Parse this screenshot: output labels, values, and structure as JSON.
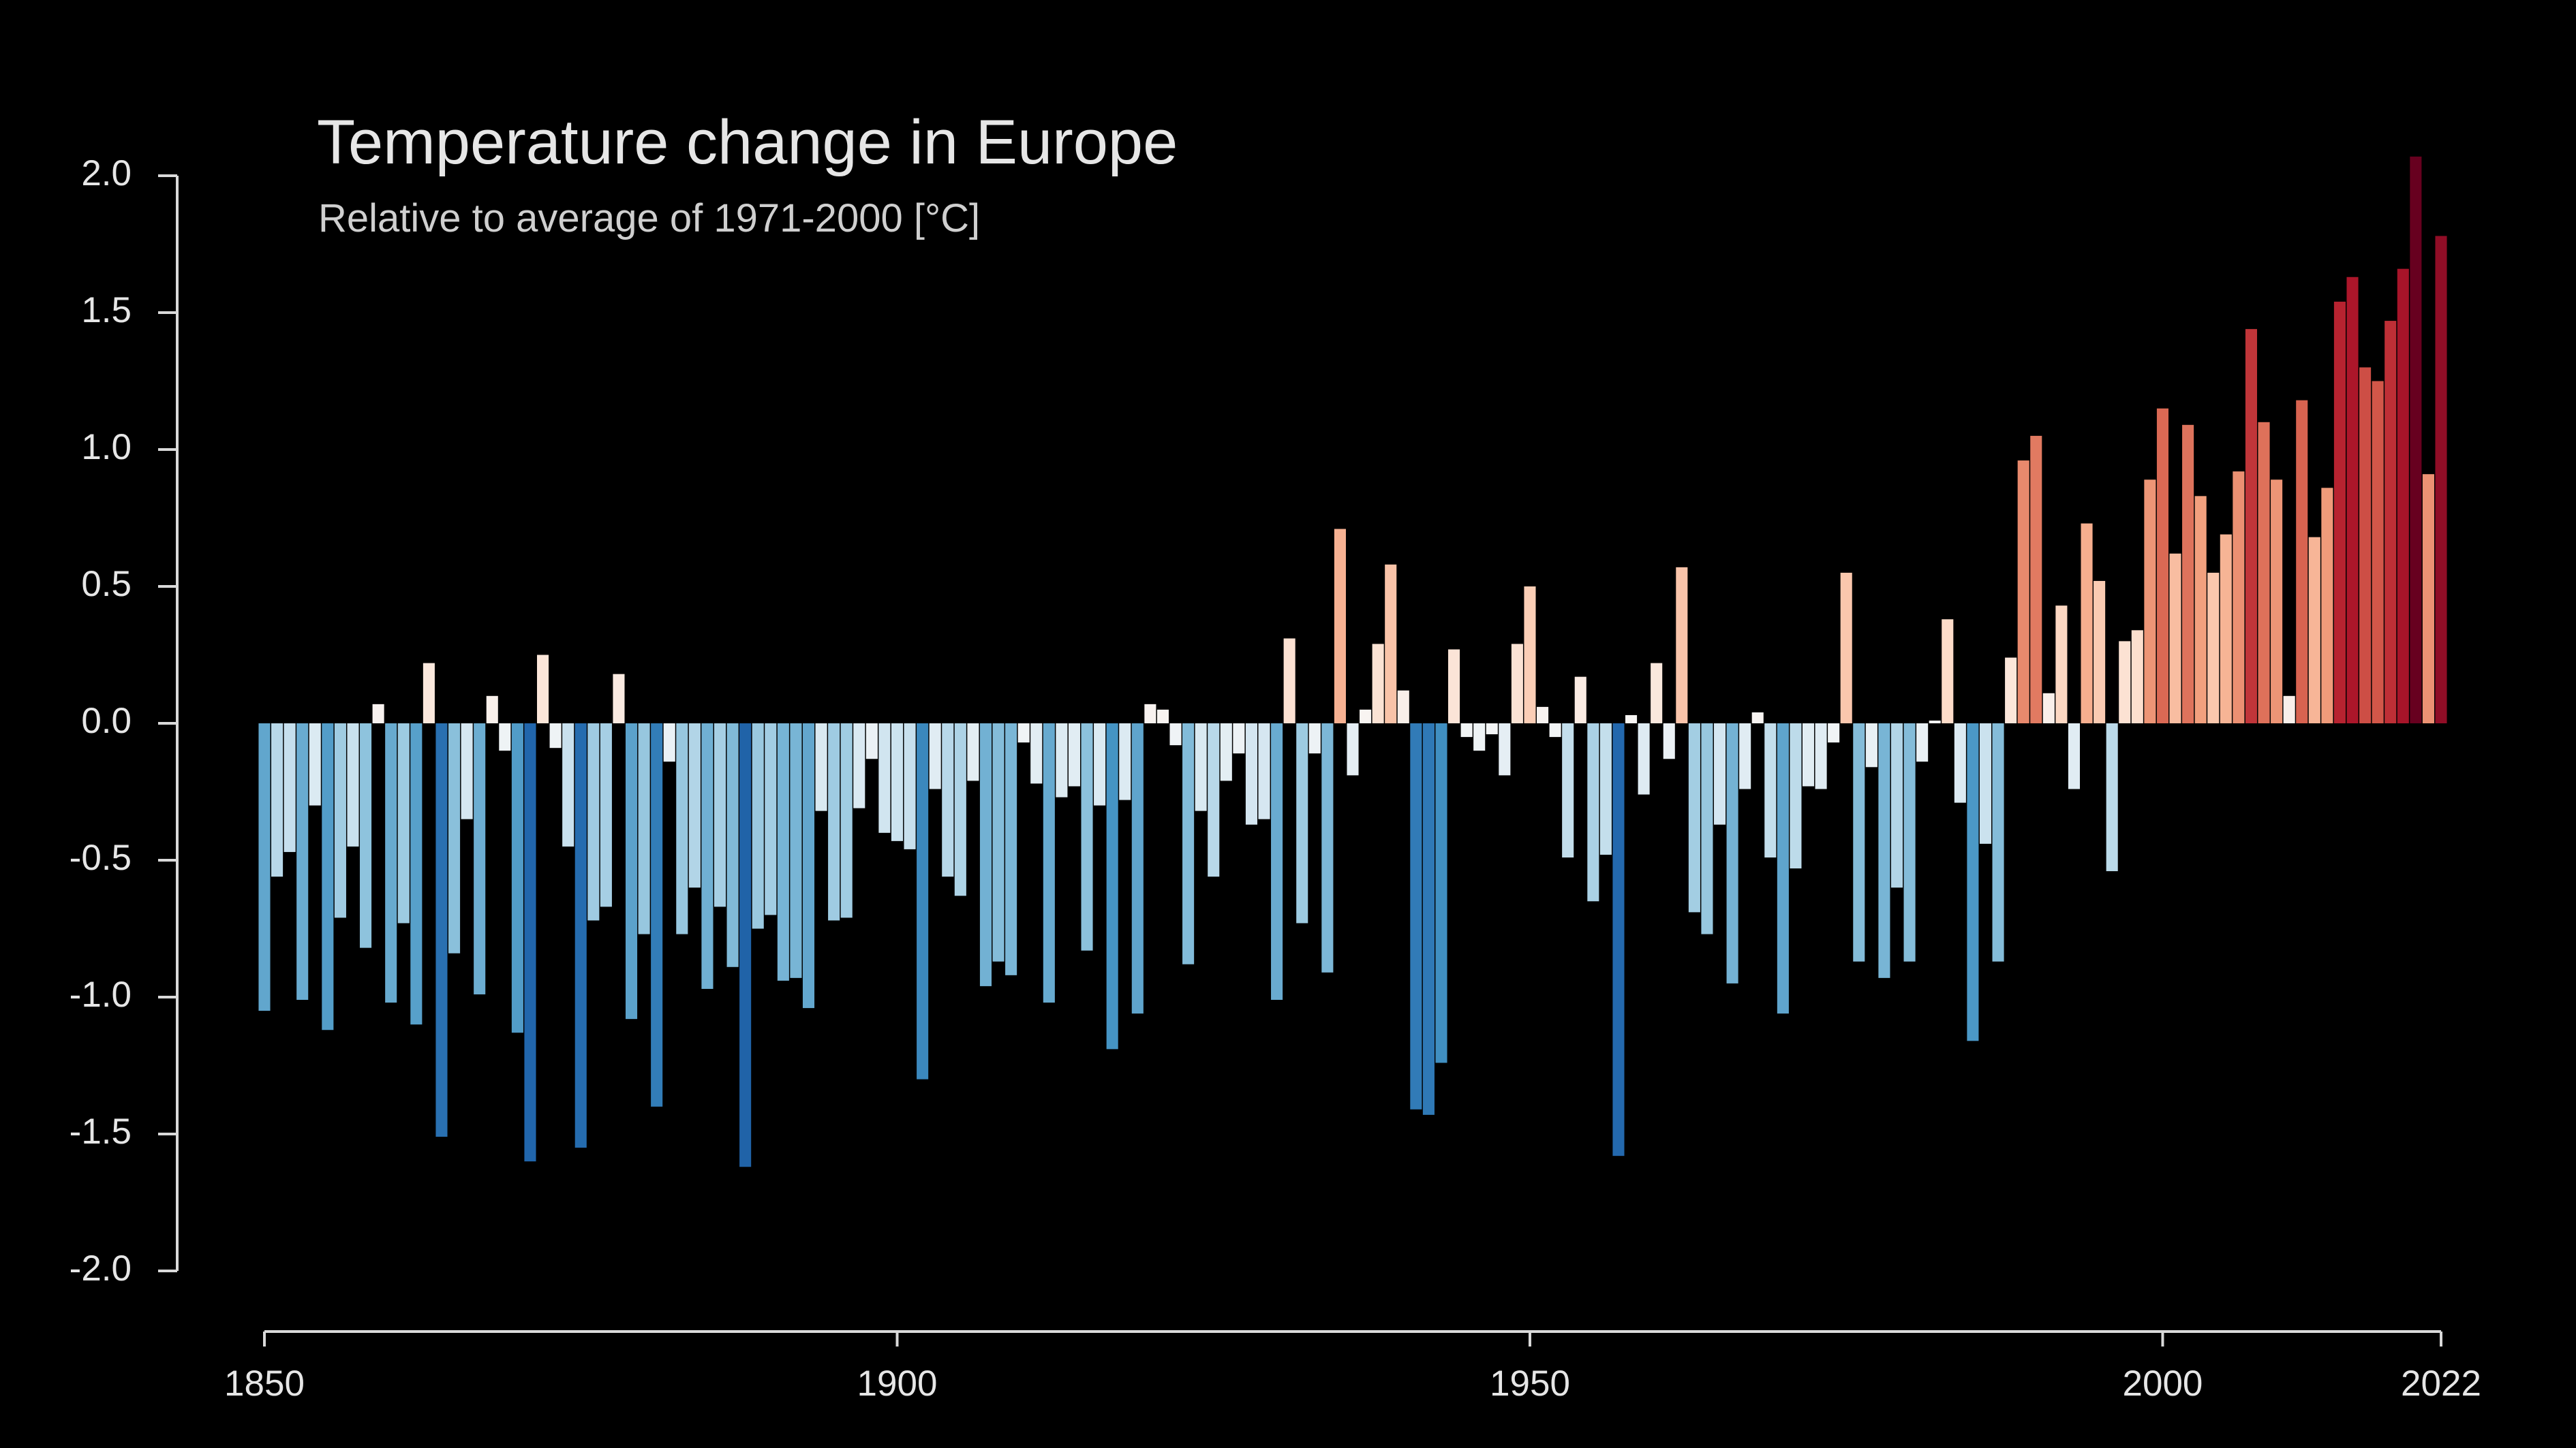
{
  "chart_data": {
    "type": "bar",
    "title": "Temperature change in Europe",
    "subtitle": "Relative to average of 1971-2000  [°C]",
    "x": [
      1850,
      1851,
      1852,
      1853,
      1854,
      1855,
      1856,
      1857,
      1858,
      1859,
      1860,
      1861,
      1862,
      1863,
      1864,
      1865,
      1866,
      1867,
      1868,
      1869,
      1870,
      1871,
      1872,
      1873,
      1874,
      1875,
      1876,
      1877,
      1878,
      1879,
      1880,
      1881,
      1882,
      1883,
      1884,
      1885,
      1886,
      1887,
      1888,
      1889,
      1890,
      1891,
      1892,
      1893,
      1894,
      1895,
      1896,
      1897,
      1898,
      1899,
      1900,
      1901,
      1902,
      1903,
      1904,
      1905,
      1906,
      1907,
      1908,
      1909,
      1910,
      1911,
      1912,
      1913,
      1914,
      1915,
      1916,
      1917,
      1918,
      1919,
      1920,
      1921,
      1922,
      1923,
      1924,
      1925,
      1926,
      1927,
      1928,
      1929,
      1930,
      1931,
      1932,
      1933,
      1934,
      1935,
      1936,
      1937,
      1938,
      1939,
      1940,
      1941,
      1942,
      1943,
      1944,
      1945,
      1946,
      1947,
      1948,
      1949,
      1950,
      1951,
      1952,
      1953,
      1954,
      1955,
      1956,
      1957,
      1958,
      1959,
      1960,
      1961,
      1962,
      1963,
      1964,
      1965,
      1966,
      1967,
      1968,
      1969,
      1970,
      1971,
      1972,
      1973,
      1974,
      1975,
      1976,
      1977,
      1978,
      1979,
      1980,
      1981,
      1982,
      1983,
      1984,
      1985,
      1986,
      1987,
      1988,
      1989,
      1990,
      1991,
      1992,
      1993,
      1994,
      1995,
      1996,
      1997,
      1998,
      1999,
      2000,
      2001,
      2002,
      2003,
      2004,
      2005,
      2006,
      2007,
      2008,
      2009,
      2010,
      2011,
      2012,
      2013,
      2014,
      2015,
      2016,
      2017,
      2018,
      2019,
      2020,
      2021,
      2022
    ],
    "values": [
      -1.05,
      -0.56,
      -0.47,
      -1.01,
      -0.3,
      -1.12,
      -0.71,
      -0.45,
      -0.82,
      0.07,
      -1.02,
      -0.73,
      -1.1,
      0.22,
      -1.51,
      -0.84,
      -0.35,
      -0.99,
      0.1,
      -0.1,
      -1.13,
      -1.6,
      0.25,
      -0.09,
      -0.45,
      -1.55,
      -0.72,
      -0.67,
      0.18,
      -1.08,
      -0.77,
      -1.4,
      -0.14,
      -0.77,
      -0.6,
      -0.97,
      -0.67,
      -0.89,
      -1.62,
      -0.75,
      -0.7,
      -0.94,
      -0.93,
      -1.04,
      -0.32,
      -0.72,
      -0.71,
      -0.31,
      -0.13,
      -0.4,
      -0.43,
      -0.46,
      -1.3,
      -0.24,
      -0.56,
      -0.63,
      -0.21,
      -0.96,
      -0.87,
      -0.92,
      -0.07,
      -0.22,
      -1.02,
      -0.27,
      -0.23,
      -0.83,
      -0.3,
      -1.19,
      -0.28,
      -1.06,
      0.07,
      0.05,
      -0.08,
      -0.88,
      -0.32,
      -0.56,
      -0.21,
      -0.11,
      -0.37,
      -0.35,
      -1.01,
      0.31,
      -0.73,
      -0.11,
      -0.91,
      0.71,
      -0.19,
      0.05,
      0.29,
      0.58,
      0.12,
      -1.41,
      -1.43,
      -1.24,
      0.27,
      -0.05,
      -0.1,
      -0.04,
      -0.19,
      0.29,
      0.5,
      0.06,
      -0.05,
      -0.49,
      0.17,
      -0.65,
      -0.48,
      -1.58,
      0.03,
      -0.26,
      0.22,
      -0.13,
      0.57,
      -0.69,
      -0.77,
      -0.37,
      -0.95,
      -0.24,
      0.04,
      -0.49,
      -1.06,
      -0.53,
      -0.23,
      -0.24,
      -0.07,
      0.55,
      -0.87,
      -0.16,
      -0.93,
      -0.6,
      -0.87,
      -0.14,
      0.01,
      0.38,
      -0.29,
      -1.16,
      -0.44,
      -0.87,
      0.24,
      0.96,
      1.05,
      0.11,
      0.43,
      -0.24,
      0.73,
      0.52,
      -0.54,
      0.3,
      0.34,
      0.89,
      1.15,
      0.62,
      1.09,
      0.83,
      0.55,
      0.69,
      0.92,
      1.44,
      1.1,
      0.89,
      0.1,
      1.18,
      0.68,
      0.86,
      1.54,
      1.63,
      1.3,
      1.25,
      1.47,
      1.66,
      2.07,
      0.91,
      1.78
    ],
    "colormap": [
      "#053061",
      "#2166ac",
      "#4393c3",
      "#92c5de",
      "#d1e5f0",
      "#f7f7f7",
      "#fddbc7",
      "#f4a582",
      "#d6604d",
      "#b2182b",
      "#67001f"
    ],
    "xlim": [
      1850,
      2022
    ],
    "xticks": [
      1850,
      1900,
      1950,
      2000,
      2022
    ],
    "ylim": [
      -2,
      2
    ],
    "yticks": [
      {
        "value": -2,
        "label": "-2.0"
      },
      -1.5,
      {
        "value": -1,
        "label": "-1.0"
      },
      -0.5,
      {
        "value": 0,
        "label": "0.0"
      },
      0.5,
      {
        "value": 1,
        "label": "1.0"
      },
      1.5,
      {
        "value": 2,
        "label": "2.0"
      }
    ],
    "grid": false
  }
}
